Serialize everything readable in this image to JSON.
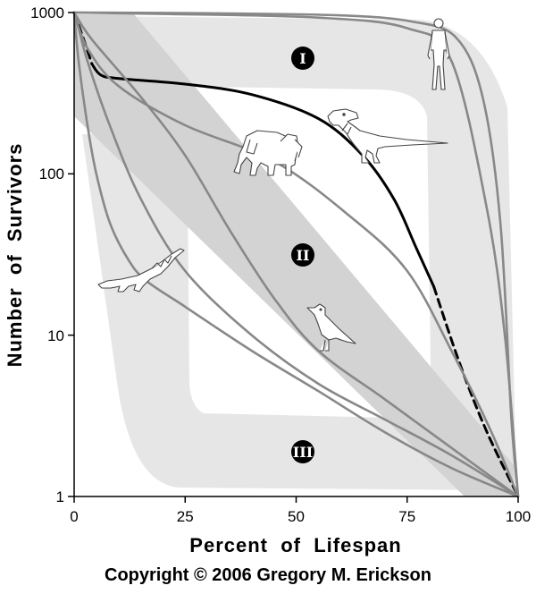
{
  "chart_data": {
    "type": "line",
    "title": "",
    "xlabel": "Percent  of  Lifespan",
    "ylabel": "Number  of  Survivors",
    "xlim": [
      0,
      100
    ],
    "ylim": [
      1,
      1000
    ],
    "yscale": "log",
    "grid": false,
    "xticks": [
      "0",
      "25",
      "50",
      "75",
      "100"
    ],
    "yticks": [
      "1",
      "10",
      "100",
      "1000"
    ],
    "zones": [
      {
        "label": "I"
      },
      {
        "label": "II"
      },
      {
        "label": "III"
      }
    ],
    "illustrations": [
      "human",
      "tyrannosaur",
      "elephant",
      "crocodile",
      "songbird"
    ],
    "series": [
      {
        "key": "type1",
        "color": "#888888",
        "points": [
          [
            0,
            1000
          ],
          [
            30,
            990
          ],
          [
            60,
            960
          ],
          [
            76,
            880
          ],
          [
            86,
            700
          ],
          [
            92,
            300
          ],
          [
            96,
            50
          ],
          [
            98.5,
            3
          ],
          [
            100,
            1
          ]
        ]
      },
      {
        "key": "upperMid",
        "color": "#888888",
        "points": [
          [
            0,
            1000
          ],
          [
            20,
            980
          ],
          [
            55,
            930
          ],
          [
            75,
            800
          ],
          [
            85,
            500
          ],
          [
            93,
            60
          ],
          [
            97,
            10
          ],
          [
            100,
            1
          ]
        ]
      },
      {
        "key": "tyrannosaur",
        "color": "#000000",
        "points": [
          [
            0,
            1000
          ],
          [
            2,
            700
          ],
          [
            4,
            480
          ],
          [
            6,
            410
          ],
          [
            10,
            390
          ],
          [
            25,
            360
          ],
          [
            40,
            310
          ],
          [
            55,
            220
          ],
          [
            65,
            130
          ],
          [
            72,
            70
          ],
          [
            77,
            35
          ],
          [
            81,
            20
          ],
          [
            87,
            6.5
          ],
          [
            93,
            2.5
          ],
          [
            100,
            1
          ]
        ],
        "dashed_ranges": [
          [
            0,
            4
          ],
          [
            81,
            100
          ]
        ]
      },
      {
        "key": "elephant",
        "color": "#888888",
        "points": [
          [
            0,
            1000
          ],
          [
            3,
            600
          ],
          [
            10,
            350
          ],
          [
            25,
            200
          ],
          [
            45,
            120
          ],
          [
            62,
            55
          ],
          [
            75,
            25
          ],
          [
            85,
            8
          ],
          [
            94,
            2.5
          ],
          [
            100,
            1
          ]
        ]
      },
      {
        "key": "bird",
        "color": "#888888",
        "points": [
          [
            0,
            1000
          ],
          [
            4,
            680
          ],
          [
            15,
            300
          ],
          [
            25,
            130
          ],
          [
            35,
            45
          ],
          [
            45,
            17
          ],
          [
            55,
            8
          ],
          [
            70,
            4
          ],
          [
            85,
            2
          ],
          [
            100,
            1
          ]
        ]
      },
      {
        "key": "midLow",
        "color": "#888888",
        "points": [
          [
            0,
            1000
          ],
          [
            1,
            800
          ],
          [
            3,
            500
          ],
          [
            8,
            200
          ],
          [
            15,
            70
          ],
          [
            25,
            25
          ],
          [
            40,
            10
          ],
          [
            55,
            5
          ],
          [
            70,
            3
          ],
          [
            85,
            1.8
          ],
          [
            100,
            1
          ]
        ]
      },
      {
        "key": "crocodile",
        "color": "#888888",
        "points": [
          [
            0,
            1000
          ],
          [
            1,
            500
          ],
          [
            3,
            200
          ],
          [
            5,
            100
          ],
          [
            8,
            50
          ],
          [
            12,
            30
          ],
          [
            16,
            22
          ],
          [
            25,
            15
          ],
          [
            40,
            8
          ],
          [
            55,
            4.5
          ],
          [
            70,
            2.5
          ],
          [
            85,
            1.5
          ],
          [
            100,
            1
          ]
        ]
      }
    ]
  },
  "copyright": "Copyright © 2006 Gregory M. Erickson"
}
